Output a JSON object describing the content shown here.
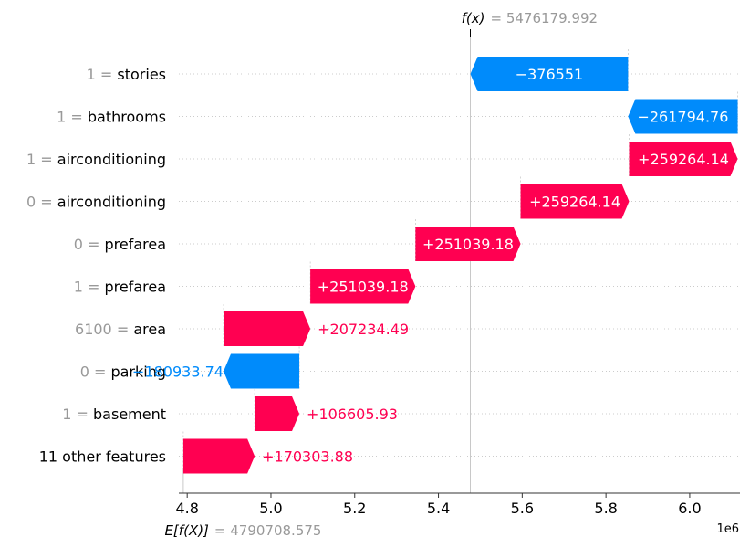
{
  "chart_data": {
    "type": "waterfall",
    "title": "",
    "fx_label": "f(x)",
    "fx_equals": "= 5476179.992",
    "fx_value": 5476179.992,
    "ex_label": "E[f(X)]",
    "ex_equals": "= 4790708.575",
    "ex_value": 4790708.575,
    "scale_label": "1e6",
    "xlim": [
      4.78,
      6.12
    ],
    "x_ticks": [
      {
        "v": 4.8,
        "label": "4.8"
      },
      {
        "v": 5.0,
        "label": "5.0"
      },
      {
        "v": 5.2,
        "label": "5.2"
      },
      {
        "v": 5.4,
        "label": "5.4"
      },
      {
        "v": 5.6,
        "label": "5.6"
      },
      {
        "v": 5.8,
        "label": "5.8"
      },
      {
        "v": 6.0,
        "label": "6.0"
      }
    ],
    "rows": [
      {
        "value_text": "1",
        "feature": "stories",
        "start": 5.8528,
        "end": 5.4762,
        "shap": "−376551",
        "label_inside": true
      },
      {
        "value_text": "1",
        "feature": "bathrooms",
        "start": 6.1146,
        "end": 5.8528,
        "shap": "−261794.76",
        "label_inside": true
      },
      {
        "value_text": "1",
        "feature": "airconditioning",
        "start": 5.8553,
        "end": 6.1146,
        "shap": "+259264.14",
        "label_inside": true
      },
      {
        "value_text": "0",
        "feature": "airconditioning",
        "start": 5.5961,
        "end": 5.8553,
        "shap": "+259264.14",
        "label_inside": true
      },
      {
        "value_text": "0",
        "feature": "prefarea",
        "start": 5.3451,
        "end": 5.5961,
        "shap": "+251039.18",
        "label_inside": true
      },
      {
        "value_text": "1",
        "feature": "prefarea",
        "start": 5.094,
        "end": 5.3451,
        "shap": "+251039.18",
        "label_inside": true
      },
      {
        "value_text": "6100",
        "feature": "area",
        "start": 4.8868,
        "end": 5.094,
        "shap": "+207234.49",
        "label_inside": false
      },
      {
        "value_text": "0",
        "feature": "parking",
        "start": 5.0677,
        "end": 4.8868,
        "shap": "−180933.74",
        "label_inside": false
      },
      {
        "value_text": "1",
        "feature": "basement",
        "start": 4.9611,
        "end": 5.0677,
        "shap": "+106605.93",
        "label_inside": false
      },
      {
        "value_text": "",
        "feature": "11 other features",
        "start": 4.7907,
        "end": 4.9611,
        "shap": "+170303.88",
        "label_inside": false
      }
    ],
    "colors": {
      "positive": "#ff0051",
      "negative": "#008bfb",
      "feature_value": "#999999",
      "feature_name": "#000000",
      "grid": "#cccccc",
      "axis": "#333333"
    }
  }
}
